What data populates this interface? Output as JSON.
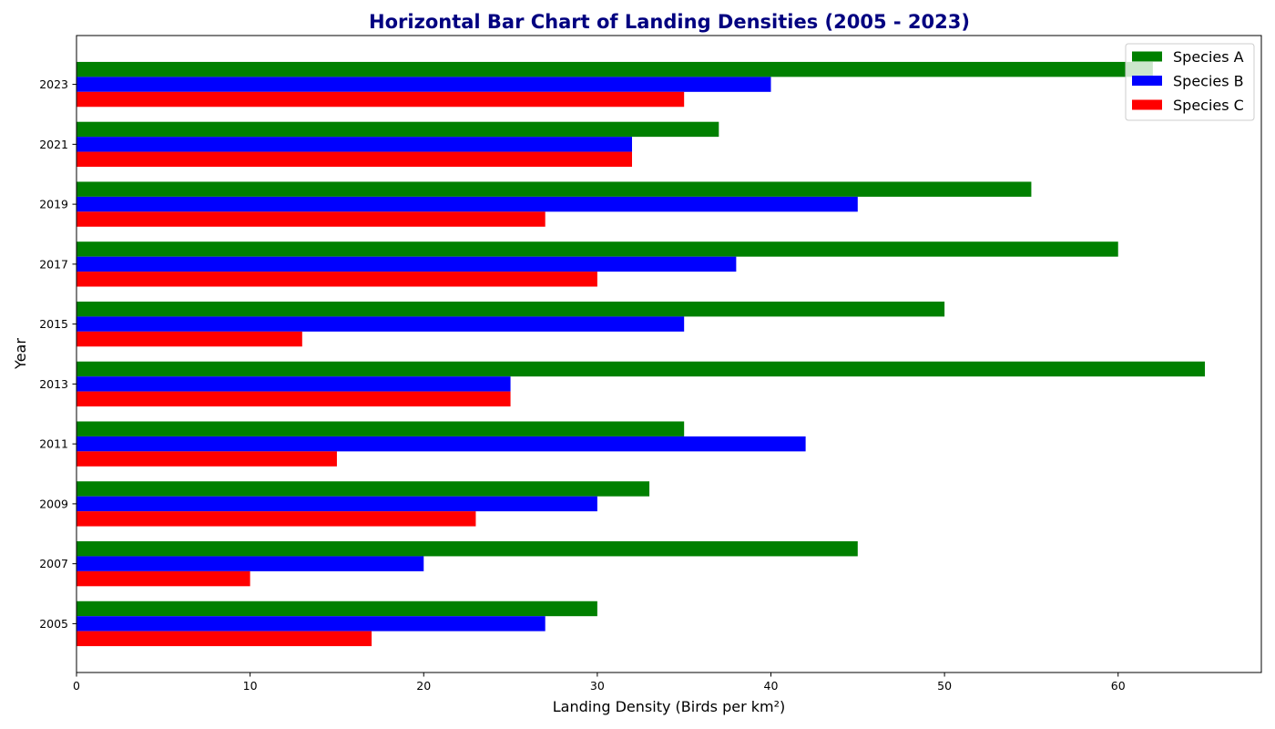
{
  "chart_data": {
    "type": "bar",
    "orientation": "horizontal",
    "title": "Horizontal Bar Chart of Landing Densities (2005 - 2023)",
    "title_color": "#000080",
    "xlabel": "Landing Density (Birds per km²)",
    "ylabel": "Year",
    "xlim": [
      0,
      68.25
    ],
    "xticks": [
      0,
      10,
      20,
      30,
      40,
      50,
      60
    ],
    "categories": [
      "2005",
      "2007",
      "2009",
      "2011",
      "2013",
      "2015",
      "2017",
      "2019",
      "2021",
      "2023"
    ],
    "series": [
      {
        "name": "Species A",
        "color": "#008000",
        "values": [
          30,
          45,
          33,
          35,
          65,
          50,
          60,
          55,
          37,
          62
        ]
      },
      {
        "name": "Species B",
        "color": "#0000ff",
        "values": [
          27,
          20,
          30,
          42,
          25,
          35,
          38,
          45,
          32,
          40
        ]
      },
      {
        "name": "Species C",
        "color": "#ff0000",
        "values": [
          17,
          10,
          23,
          15,
          25,
          13,
          30,
          27,
          32,
          35
        ]
      }
    ],
    "legend_position": "upper right",
    "grid": false
  }
}
